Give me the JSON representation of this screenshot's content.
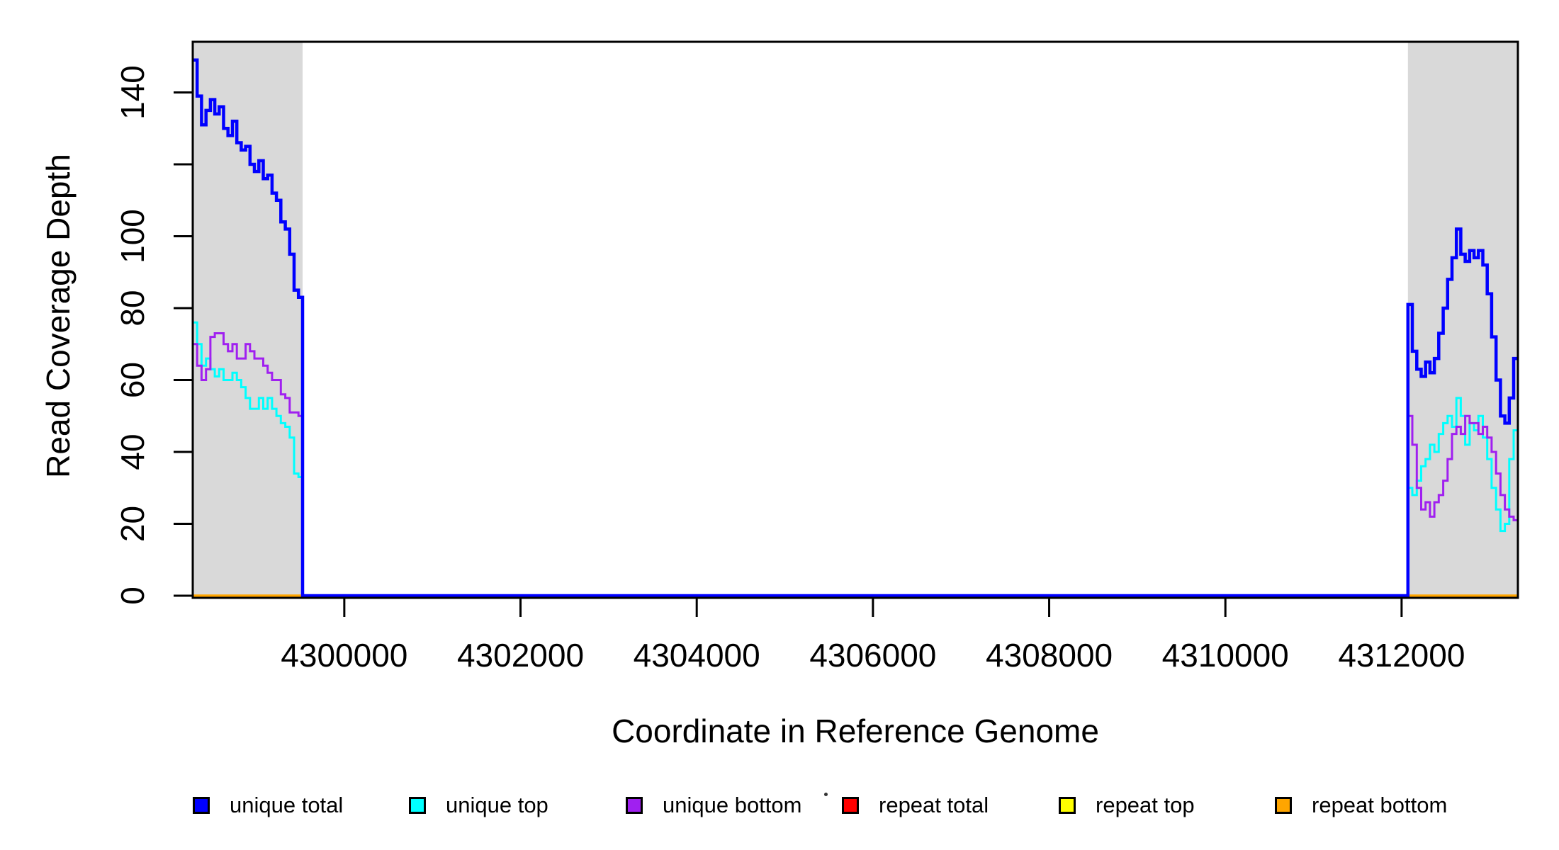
{
  "figure": {
    "background": "#ffffff"
  },
  "x_axis": {
    "title": "Coordinate in Reference Genome",
    "ticks": [
      {
        "value": 4300000,
        "label": "4300000"
      },
      {
        "value": 4302000,
        "label": "4302000"
      },
      {
        "value": 4304000,
        "label": "4304000"
      },
      {
        "value": 4306000,
        "label": "4306000"
      },
      {
        "value": 4308000,
        "label": "4308000"
      },
      {
        "value": 4310000,
        "label": "4310000"
      },
      {
        "value": 4312000,
        "label": "4312000"
      }
    ]
  },
  "y_axis": {
    "title": "Read Coverage Depth",
    "ticks": [
      {
        "value": 0,
        "label": "0"
      },
      {
        "value": 20,
        "label": "20"
      },
      {
        "value": 40,
        "label": "40"
      },
      {
        "value": 60,
        "label": "60"
      },
      {
        "value": 80,
        "label": "80"
      },
      {
        "value": 100,
        "label": "100"
      },
      {
        "value": 120,
        "label": ""
      },
      {
        "value": 140,
        "label": "140"
      }
    ]
  },
  "legend": {
    "items": [
      {
        "label": "unique total",
        "color": "#0000FF"
      },
      {
        "label": "unique top",
        "color": "#00FFFF"
      },
      {
        "label": "unique bottom",
        "color": "#A020F0"
      },
      {
        "label": "repeat total",
        "color": "#FF0000"
      },
      {
        "label": "repeat top",
        "color": "#FFFF00"
      },
      {
        "label": "repeat bottom",
        "color": "#FFA500"
      }
    ]
  },
  "chart_data": {
    "type": "line",
    "subtype": "step",
    "title": "",
    "xlabel": "Coordinate in Reference Genome",
    "ylabel": "Read Coverage Depth",
    "xlim": [
      4298280,
      4313320
    ],
    "ylim": [
      0,
      154
    ],
    "grid": false,
    "legend_position": "bottom",
    "shaded_regions": [
      {
        "x1": 4298280,
        "x2": 4299527,
        "color": "#D9D9D9"
      },
      {
        "x1": 4312072,
        "x2": 4313320,
        "color": "#D9D9D9"
      }
    ],
    "series": [
      {
        "name": "repeat total",
        "color": "#FF0000",
        "line_width": 3,
        "points": [
          [
            4298280,
            0
          ]
        ]
      },
      {
        "name": "repeat top",
        "color": "#FFFF00",
        "line_width": 3,
        "points": [
          [
            4298280,
            0
          ]
        ]
      },
      {
        "name": "repeat bottom",
        "color": "#FFA500",
        "line_width": 3.5,
        "points": [
          [
            4298280,
            0
          ]
        ]
      },
      {
        "name": "unique top",
        "color": "#00FFFF",
        "line_width": 3,
        "points": [
          [
            4298280,
            76
          ],
          [
            4298330,
            70
          ],
          [
            4298380,
            64
          ],
          [
            4298430,
            66
          ],
          [
            4298480,
            63
          ],
          [
            4298530,
            61
          ],
          [
            4298580,
            63
          ],
          [
            4298630,
            60
          ],
          [
            4298680,
            60
          ],
          [
            4298730,
            62
          ],
          [
            4298780,
            60
          ],
          [
            4298830,
            58
          ],
          [
            4298880,
            55
          ],
          [
            4298930,
            52
          ],
          [
            4298980,
            52
          ],
          [
            4299030,
            55
          ],
          [
            4299080,
            52
          ],
          [
            4299130,
            55
          ],
          [
            4299180,
            52
          ],
          [
            4299230,
            50
          ],
          [
            4299280,
            48
          ],
          [
            4299330,
            47
          ],
          [
            4299380,
            44
          ],
          [
            4299430,
            34
          ],
          [
            4299480,
            33
          ],
          [
            4299527,
            0
          ],
          [
            4312072,
            30
          ],
          [
            4312122,
            28
          ],
          [
            4312172,
            32
          ],
          [
            4312222,
            36
          ],
          [
            4312272,
            38
          ],
          [
            4312322,
            42
          ],
          [
            4312372,
            40
          ],
          [
            4312422,
            45
          ],
          [
            4312472,
            48
          ],
          [
            4312522,
            50
          ],
          [
            4312572,
            47
          ],
          [
            4312622,
            55
          ],
          [
            4312672,
            50
          ],
          [
            4312722,
            42
          ],
          [
            4312772,
            48
          ],
          [
            4312822,
            46
          ],
          [
            4312872,
            50
          ],
          [
            4312922,
            44
          ],
          [
            4312972,
            38
          ],
          [
            4313022,
            30
          ],
          [
            4313072,
            24
          ],
          [
            4313122,
            18
          ],
          [
            4313172,
            20
          ],
          [
            4313222,
            38
          ],
          [
            4313272,
            46
          ]
        ]
      },
      {
        "name": "unique bottom",
        "color": "#A020F0",
        "line_width": 3,
        "points": [
          [
            4298280,
            70
          ],
          [
            4298330,
            64
          ],
          [
            4298380,
            60
          ],
          [
            4298430,
            63
          ],
          [
            4298480,
            72
          ],
          [
            4298530,
            73
          ],
          [
            4298580,
            73
          ],
          [
            4298630,
            70
          ],
          [
            4298680,
            68
          ],
          [
            4298730,
            70
          ],
          [
            4298780,
            66
          ],
          [
            4298830,
            66
          ],
          [
            4298880,
            70
          ],
          [
            4298930,
            68
          ],
          [
            4298980,
            66
          ],
          [
            4299030,
            66
          ],
          [
            4299080,
            64
          ],
          [
            4299130,
            62
          ],
          [
            4299180,
            60
          ],
          [
            4299230,
            60
          ],
          [
            4299280,
            56
          ],
          [
            4299330,
            55
          ],
          [
            4299380,
            51
          ],
          [
            4299430,
            51
          ],
          [
            4299480,
            50
          ],
          [
            4299527,
            0
          ],
          [
            4312072,
            50
          ],
          [
            4312122,
            42
          ],
          [
            4312172,
            30
          ],
          [
            4312222,
            24
          ],
          [
            4312272,
            26
          ],
          [
            4312322,
            22
          ],
          [
            4312372,
            26
          ],
          [
            4312422,
            28
          ],
          [
            4312472,
            32
          ],
          [
            4312522,
            38
          ],
          [
            4312572,
            45
          ],
          [
            4312622,
            47
          ],
          [
            4312672,
            45
          ],
          [
            4312722,
            50
          ],
          [
            4312772,
            48
          ],
          [
            4312822,
            48
          ],
          [
            4312872,
            45
          ],
          [
            4312922,
            47
          ],
          [
            4312972,
            44
          ],
          [
            4313022,
            40
          ],
          [
            4313072,
            34
          ],
          [
            4313122,
            28
          ],
          [
            4313172,
            24
          ],
          [
            4313222,
            22
          ],
          [
            4313272,
            21
          ]
        ]
      },
      {
        "name": "unique total",
        "color": "#0000FF",
        "line_width": 4.5,
        "points": [
          [
            4298280,
            149
          ],
          [
            4298330,
            139
          ],
          [
            4298380,
            131
          ],
          [
            4298430,
            135
          ],
          [
            4298480,
            138
          ],
          [
            4298530,
            134
          ],
          [
            4298580,
            136
          ],
          [
            4298630,
            130
          ],
          [
            4298680,
            128
          ],
          [
            4298730,
            132
          ],
          [
            4298780,
            126
          ],
          [
            4298830,
            124
          ],
          [
            4298880,
            125
          ],
          [
            4298930,
            120
          ],
          [
            4298980,
            118
          ],
          [
            4299030,
            121
          ],
          [
            4299080,
            116
          ],
          [
            4299130,
            117
          ],
          [
            4299180,
            112
          ],
          [
            4299230,
            110
          ],
          [
            4299280,
            104
          ],
          [
            4299330,
            102
          ],
          [
            4299380,
            95
          ],
          [
            4299430,
            85
          ],
          [
            4299480,
            83
          ],
          [
            4299527,
            0
          ],
          [
            4312072,
            81
          ],
          [
            4312122,
            68
          ],
          [
            4312172,
            63
          ],
          [
            4312222,
            61
          ],
          [
            4312272,
            65
          ],
          [
            4312322,
            62
          ],
          [
            4312372,
            66
          ],
          [
            4312422,
            73
          ],
          [
            4312472,
            80
          ],
          [
            4312522,
            88
          ],
          [
            4312572,
            94
          ],
          [
            4312622,
            102
          ],
          [
            4312672,
            95
          ],
          [
            4312722,
            93
          ],
          [
            4312772,
            96
          ],
          [
            4312822,
            94
          ],
          [
            4312872,
            96
          ],
          [
            4312922,
            92
          ],
          [
            4312972,
            84
          ],
          [
            4313022,
            72
          ],
          [
            4313072,
            60
          ],
          [
            4313122,
            50
          ],
          [
            4313172,
            48
          ],
          [
            4313222,
            55
          ],
          [
            4313272,
            66
          ]
        ]
      }
    ]
  }
}
